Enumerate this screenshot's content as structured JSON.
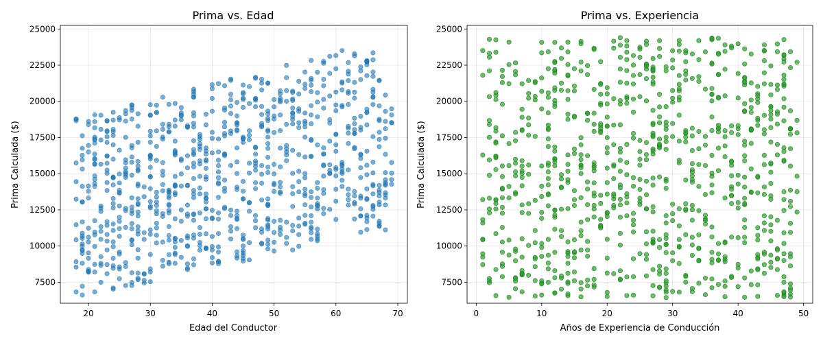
{
  "chart_data": [
    {
      "type": "scatter",
      "title": "Prima vs. Edad",
      "xlabel": "Edad del Conductor",
      "ylabel": "Prima Calculada ($)",
      "xlim": [
        15.45,
        71.55
      ],
      "ylim": [
        6050,
        25250
      ],
      "xticks": [
        20,
        30,
        40,
        50,
        60,
        70
      ],
      "yticks": [
        7500,
        10000,
        12500,
        15000,
        17500,
        20000,
        22500,
        25000
      ],
      "ytick_labels": [
        "7500",
        "10000",
        "12500",
        "15000",
        "17500",
        "20000",
        "22500",
        "25000"
      ],
      "grid": true,
      "color": "#1f77b4",
      "alpha": 0.6,
      "seed": 7,
      "n_points": 900,
      "x_range": [
        18,
        69
      ],
      "model": {
        "note_visible_trend": "prima increases with edad",
        "base_low": [
          6400,
          11200
        ],
        "base_high": [
          18800,
          24400
        ]
      }
    },
    {
      "type": "scatter",
      "title": "Prima vs. Experiencia",
      "xlabel": "Años de Experiencia de Conducción",
      "ylabel": "Prima Calculada ($)",
      "xlim": [
        -1.4,
        51.4
      ],
      "ylim": [
        6050,
        25250
      ],
      "xticks": [
        0,
        10,
        20,
        30,
        40,
        50
      ],
      "yticks": [
        7500,
        10000,
        12500,
        15000,
        17500,
        20000,
        22500,
        25000
      ],
      "ytick_labels": [
        "7500",
        "10000",
        "12500",
        "15000",
        "17500",
        "20000",
        "22500",
        "25000"
      ],
      "grid": true,
      "color": "#2ca02c",
      "edge_color": "#1a7a1a",
      "alpha": 0.7,
      "seed": 13,
      "n_points": 900,
      "x_range": [
        1,
        49
      ],
      "model": {
        "note_visible_trend": "no clear relationship",
        "y_range": [
          6400,
          24400
        ]
      }
    }
  ]
}
